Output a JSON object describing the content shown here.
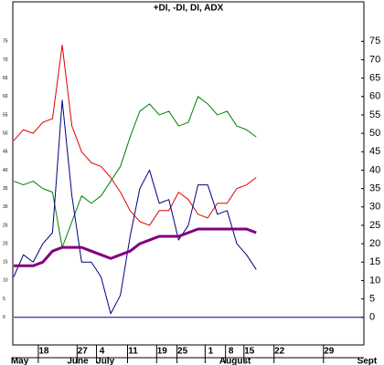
{
  "chart_data": {
    "type": "line",
    "title": "+DI, -DI, DI, ADX",
    "x": [
      0,
      1,
      2,
      3,
      4,
      5,
      6,
      7,
      8,
      9,
      10,
      11,
      12,
      13,
      14,
      15,
      16,
      17,
      18,
      19,
      20,
      21,
      22,
      23,
      24,
      25
    ],
    "series": [
      {
        "color": "#e00000",
        "width": 1,
        "values": [
          48,
          51,
          50,
          53,
          54,
          74,
          52,
          45,
          42,
          41,
          38,
          34,
          29,
          26,
          25,
          29,
          29,
          34,
          32,
          28,
          27,
          31,
          31,
          35,
          36,
          38
        ]
      },
      {
        "color": "#008000",
        "width": 1,
        "values": [
          37,
          36,
          37,
          35,
          34,
          19,
          26,
          33,
          31,
          33,
          37,
          41,
          49,
          56,
          58,
          55,
          56,
          52,
          53,
          60,
          58,
          55,
          56,
          52,
          51,
          49
        ]
      },
      {
        "color": "#000080",
        "width": 1,
        "values": [
          11,
          17,
          15,
          20,
          23,
          59,
          33,
          15,
          15,
          11,
          1,
          6,
          22,
          35,
          40,
          31,
          32,
          21,
          25,
          36,
          36,
          28,
          29,
          20,
          17,
          13
        ]
      },
      {
        "color": "#800080",
        "width": 3,
        "values": [
          14,
          14,
          14,
          15,
          18,
          19,
          19,
          19,
          18,
          17,
          16,
          17,
          18,
          20,
          21,
          22,
          22,
          22,
          23,
          24,
          24,
          24,
          24,
          24,
          24,
          23
        ]
      }
    ],
    "xlim": [
      0,
      36.1
    ],
    "xticks": [
      {
        "value": 3.1,
        "label": "18"
      },
      {
        "value": 7.1,
        "label": "27"
      },
      {
        "value": 9.1,
        "label": "4"
      },
      {
        "value": 12.3,
        "label": "11"
      },
      {
        "value": 15.3,
        "label": "19"
      },
      {
        "value": 17.4,
        "label": "25"
      },
      {
        "value": 20.3,
        "label": "1"
      },
      {
        "value": 22.4,
        "label": "8"
      },
      {
        "value": 24.3,
        "label": "15"
      },
      {
        "value": 27.4,
        "label": "22"
      },
      {
        "value": 32.5,
        "label": "29"
      }
    ],
    "month_labels": [
      {
        "value": -0.3,
        "label": "May"
      },
      {
        "value": 5.5,
        "label": "June"
      },
      {
        "value": 8.5,
        "label": "July"
      },
      {
        "value": 21.2,
        "label": "August"
      },
      {
        "value": 35.4,
        "label": "Sept"
      }
    ],
    "ylim": [
      -8,
      85
    ],
    "yticks": [
      0,
      5,
      10,
      15,
      20,
      25,
      30,
      35,
      40,
      45,
      50,
      55,
      60,
      65,
      70,
      75
    ],
    "zero_line": true
  }
}
